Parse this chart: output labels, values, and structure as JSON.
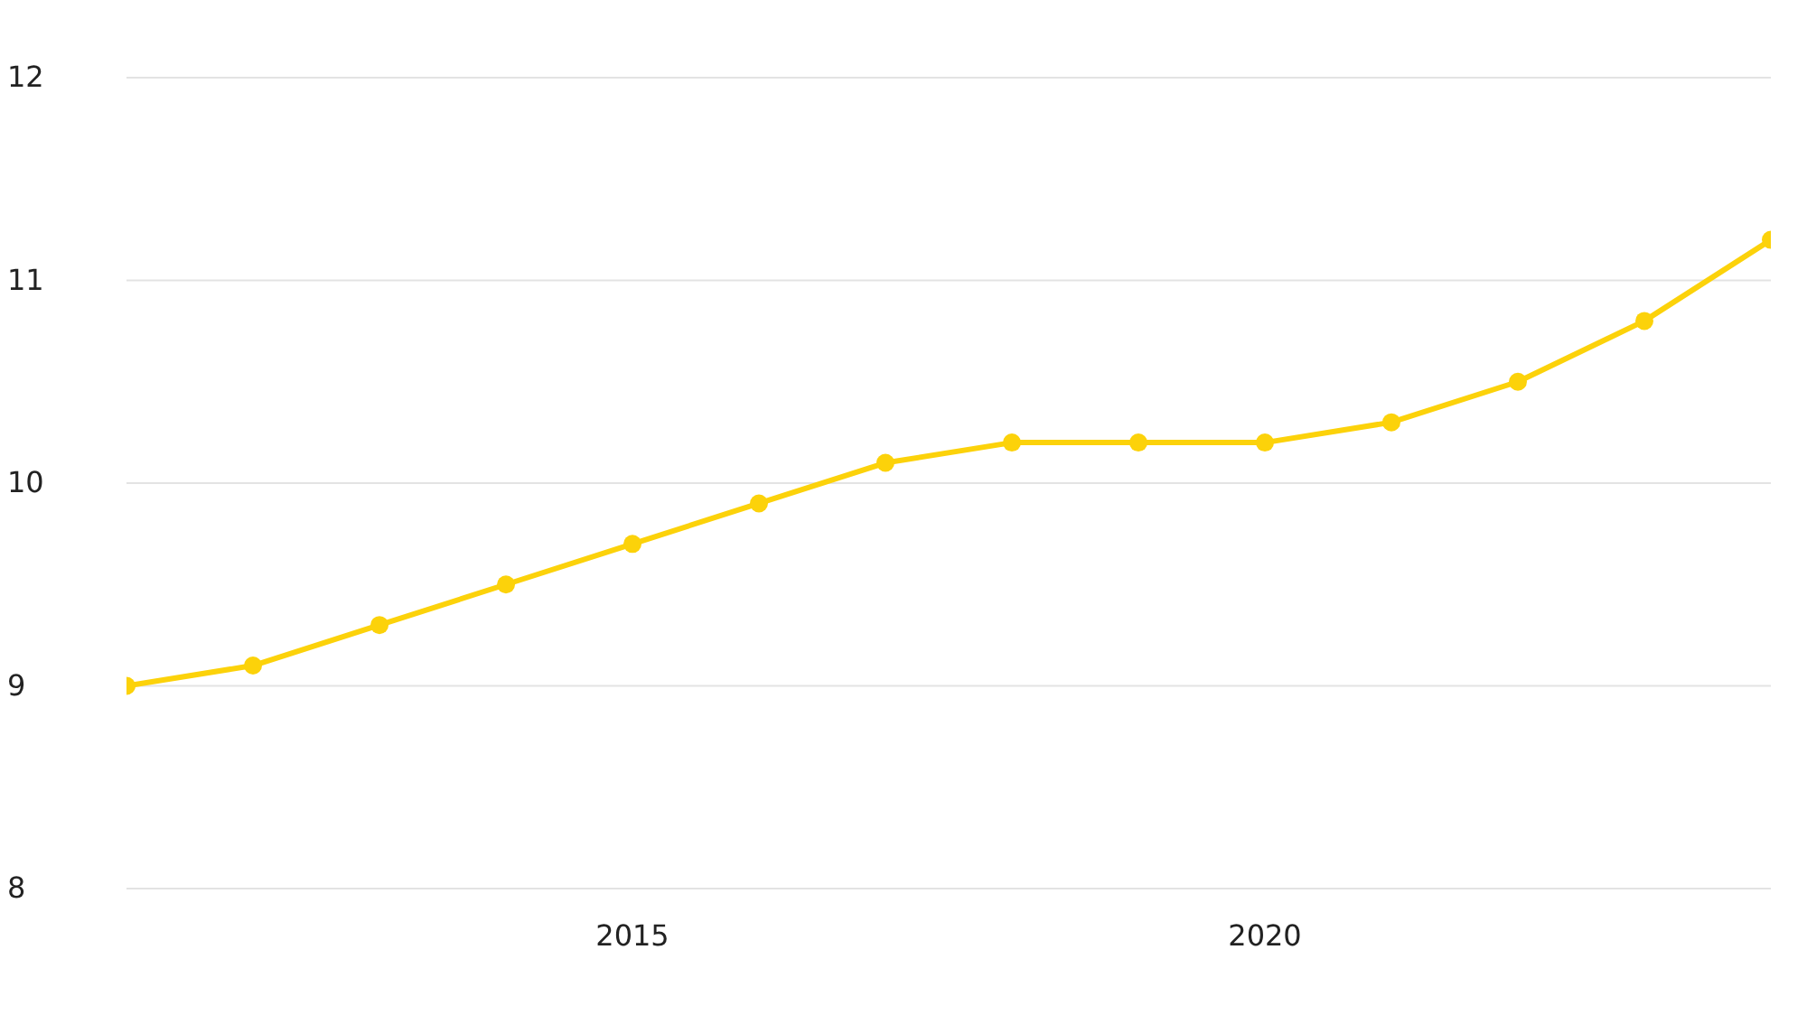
{
  "chart_data": {
    "type": "line",
    "x": [
      2011,
      2012,
      2013,
      2014,
      2015,
      2016,
      2017,
      2018,
      2019,
      2020,
      2021,
      2022,
      2023,
      2024
    ],
    "series": [
      {
        "color": "#fcd20a",
        "values": [
          9.0,
          9.1,
          9.3,
          9.5,
          9.7,
          9.9,
          10.1,
          10.2,
          10.2,
          10.2,
          10.3,
          10.5,
          10.8,
          11.2
        ]
      }
    ],
    "xlim": [
      2011,
      2024
    ],
    "xticks": [
      2015,
      2020
    ],
    "ylim": [
      8,
      12
    ],
    "yticks": [
      8,
      9,
      10,
      11,
      12
    ],
    "grid": "y",
    "legend": false,
    "marker": "circle",
    "line_style": "solid"
  }
}
